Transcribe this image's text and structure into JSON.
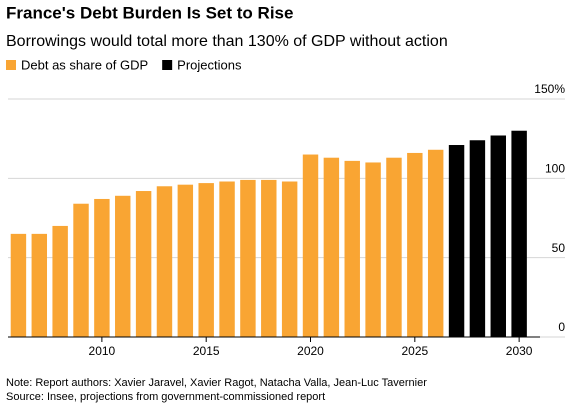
{
  "chart_data": {
    "type": "bar",
    "title": "France's Debt Burden Is Set to Rise",
    "subtitle": "Borrowings would total more than 130% of GDP without action",
    "x": [
      2006,
      2007,
      2008,
      2009,
      2010,
      2011,
      2012,
      2013,
      2014,
      2015,
      2016,
      2017,
      2018,
      2019,
      2020,
      2021,
      2022,
      2023,
      2024,
      2025,
      2026,
      2027,
      2028,
      2029,
      2030
    ],
    "series": [
      {
        "name": "Debt as share of GDP",
        "color": "#f9a533",
        "values": [
          65,
          65,
          70,
          84,
          87,
          89,
          92,
          95,
          96,
          97,
          98,
          99,
          99,
          98,
          115,
          113,
          111,
          110,
          113,
          116,
          118,
          null,
          null,
          null,
          null
        ]
      },
      {
        "name": "Projections",
        "color": "#000000",
        "values": [
          null,
          null,
          null,
          null,
          null,
          null,
          null,
          null,
          null,
          null,
          null,
          null,
          null,
          null,
          null,
          null,
          null,
          null,
          null,
          null,
          null,
          121,
          124,
          127,
          130
        ]
      }
    ],
    "xlim": [
      2005.5,
      2031
    ],
    "xticks": [
      2010,
      2015,
      2020,
      2025,
      2030
    ],
    "ylim": [
      0,
      150
    ],
    "yticks": [
      0,
      50,
      100,
      {
        "value": 150,
        "label": "150%"
      }
    ],
    "grid": true,
    "legend": "top-left",
    "notes": [
      "Note: Report authors: Xavier Jaravel, Xavier Ragot, Natacha Valla, Jean-Luc Tavernier",
      "Source: Insee, projections from government-commissioned report"
    ]
  }
}
